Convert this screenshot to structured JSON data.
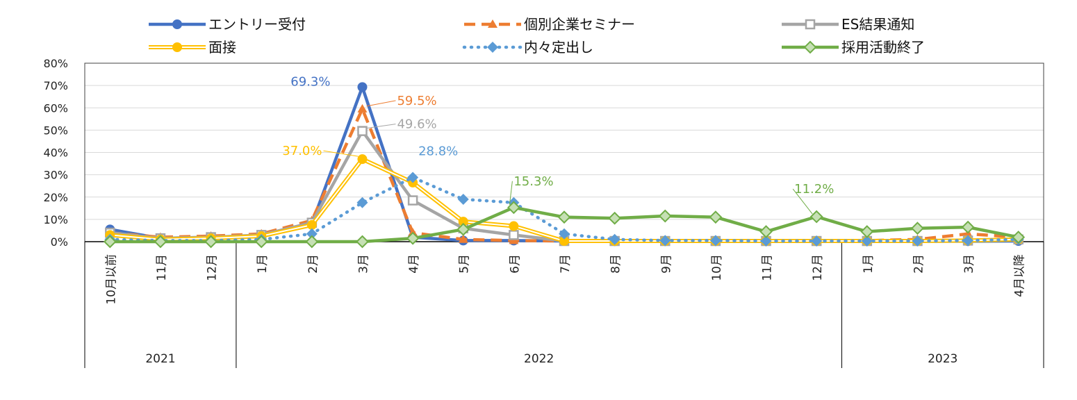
{
  "chart_data": {
    "type": "line",
    "title": "",
    "xlabel": "",
    "ylabel": "",
    "ylim": [
      0,
      80
    ],
    "y_ticks": [
      "0%",
      "10%",
      "20%",
      "30%",
      "40%",
      "50%",
      "60%",
      "70%",
      "80%"
    ],
    "categories": [
      "10月以前",
      "11月",
      "12月",
      "1月",
      "2月",
      "3月",
      "4月",
      "5月",
      "6月",
      "7月",
      "8月",
      "9月",
      "10月",
      "11月",
      "12月",
      "1月",
      "2月",
      "3月",
      "4月以降"
    ],
    "year_groups": [
      {
        "label": "2021",
        "start": 0,
        "end": 2
      },
      {
        "label": "2022",
        "start": 3,
        "end": 14
      },
      {
        "label": "2023",
        "start": 15,
        "end": 18
      }
    ],
    "legend": "top",
    "grid": true,
    "series": [
      {
        "name": "エントリー受付",
        "color": "#4472C4",
        "style": "solid",
        "marker": "circle",
        "values": [
          5.5,
          1.5,
          2.0,
          2.5,
          8.0,
          69.3,
          2.0,
          0.5,
          0.5,
          0.3,
          0.2,
          0.2,
          0.2,
          0.2,
          0.2,
          0.2,
          0.2,
          0.2,
          0.3
        ]
      },
      {
        "name": "個別企業セミナー",
        "color": "#ED7D31",
        "style": "dashed",
        "marker": "triangle",
        "values": [
          4.0,
          2.0,
          2.5,
          3.5,
          9.5,
          59.5,
          4.0,
          1.0,
          0.5,
          0.3,
          0.3,
          0.3,
          0.3,
          0.3,
          0.5,
          0.5,
          1.0,
          3.5,
          2.0
        ]
      },
      {
        "name": "ES結果通知",
        "color": "#A5A5A5",
        "style": "solid",
        "marker": "square",
        "values": [
          4.0,
          1.5,
          2.0,
          3.0,
          8.5,
          49.6,
          18.5,
          6.0,
          3.0,
          0.3,
          0.3,
          0.3,
          0.3,
          0.3,
          0.3,
          0.3,
          0.3,
          0.5,
          1.0
        ]
      },
      {
        "name": "面接",
        "color": "#FFC000",
        "style": "double",
        "marker": "circle",
        "values": [
          3.0,
          1.0,
          1.5,
          2.5,
          7.5,
          37.0,
          26.5,
          9.0,
          7.0,
          0.3,
          0.3,
          0.3,
          0.3,
          0.3,
          0.3,
          0.3,
          0.3,
          0.5,
          1.0
        ]
      },
      {
        "name": "内々定出し",
        "color": "#5B9BD5",
        "style": "dotted",
        "marker": "diamond",
        "values": [
          1.0,
          0.5,
          0.5,
          1.0,
          3.5,
          17.5,
          28.8,
          19.0,
          17.5,
          3.5,
          1.0,
          0.5,
          0.5,
          0.3,
          0.3,
          0.3,
          0.3,
          0.5,
          1.0
        ]
      },
      {
        "name": "採用活動終了",
        "color": "#70AD47",
        "style": "solid",
        "marker": "diamond-open",
        "values": [
          0.0,
          0.0,
          0.0,
          0.0,
          0.0,
          0.0,
          1.5,
          5.5,
          15.3,
          11.0,
          10.5,
          11.5,
          11.0,
          4.5,
          11.2,
          4.5,
          6.0,
          6.5,
          2.0
        ]
      }
    ],
    "annotations": [
      {
        "text": "69.3%",
        "series": 0,
        "index": 5
      },
      {
        "text": "59.5%",
        "series": 1,
        "index": 5
      },
      {
        "text": "49.6%",
        "series": 2,
        "index": 5
      },
      {
        "text": "37.0%",
        "series": 3,
        "index": 5
      },
      {
        "text": "28.8%",
        "series": 4,
        "index": 6
      },
      {
        "text": "15.3%",
        "series": 5,
        "index": 8
      },
      {
        "text": "11.2%",
        "series": 5,
        "index": 14
      }
    ]
  }
}
